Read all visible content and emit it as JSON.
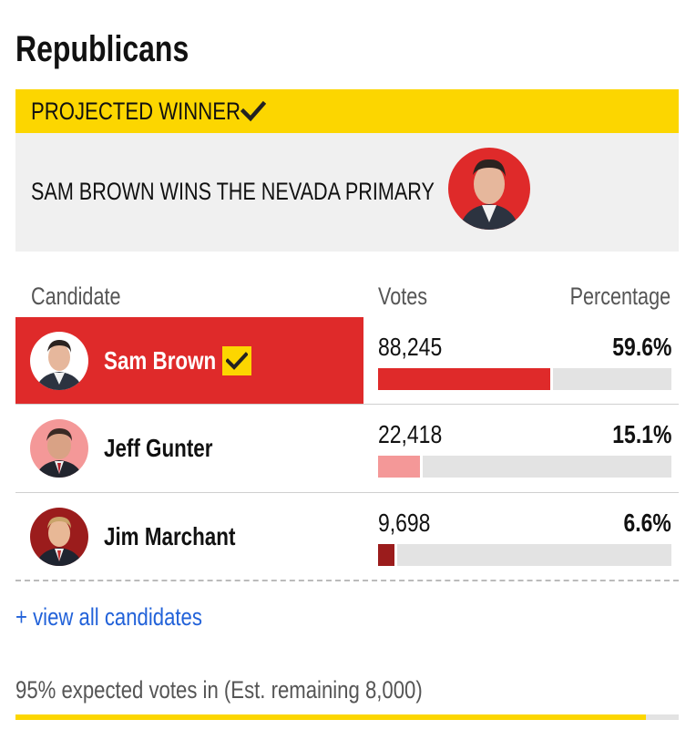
{
  "party_title": "Republicans",
  "winner": {
    "banner_label": "PROJECTED WINNER",
    "headline": "SAM BROWN WINS THE NEVADA PRIMARY",
    "photo_bg": "#df2a2a"
  },
  "table": {
    "headers": {
      "candidate": "Candidate",
      "votes": "Votes",
      "percentage": "Percentage"
    },
    "rows": [
      {
        "name": "Sam Brown",
        "votes": "88,245",
        "percentage": "59.6%",
        "share": 0.596,
        "winner": true,
        "bar_color": "#df2a2a",
        "avatar_bg": "#ffffff"
      },
      {
        "name": "Jeff Gunter",
        "votes": "22,418",
        "percentage": "15.1%",
        "share": 0.151,
        "winner": false,
        "bar_color": "#f49898",
        "avatar_bg": "#f49898"
      },
      {
        "name": "Jim Marchant",
        "votes": "9,698",
        "percentage": "6.6%",
        "share": 0.066,
        "winner": false,
        "bar_color": "#9b1c1c",
        "avatar_bg": "#9b1c1c"
      }
    ]
  },
  "view_all_link": "+ view all candidates",
  "expected": {
    "text": "95% expected votes in (Est. remaining 8,000)",
    "fraction": 0.95
  },
  "colors": {
    "accent_yellow": "#fcd600",
    "winner_red": "#df2a2a",
    "link_blue": "#2262d9"
  }
}
